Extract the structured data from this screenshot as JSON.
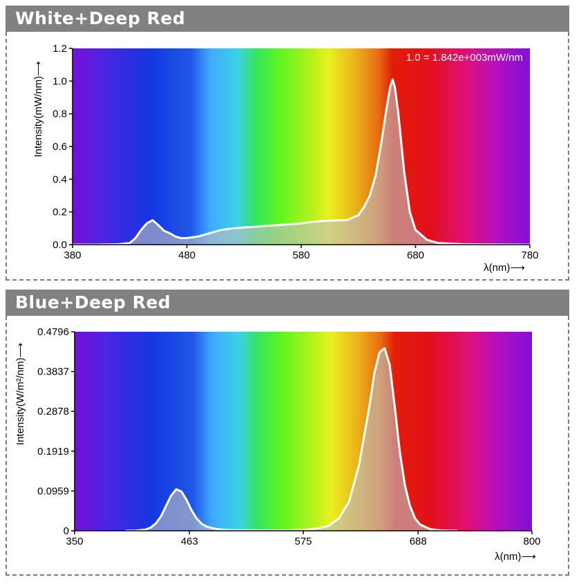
{
  "panels": [
    {
      "title": "White+Deep Red"
    },
    {
      "title": "Blue+Deep Red"
    }
  ],
  "chart_data": [
    {
      "type": "line",
      "title": "White+Deep Red",
      "xlabel": "λ(nm)⟶",
      "ylabel": "Intensity(mW/nm)⟶",
      "annotation": "1.0 = 1.842e+003mW/nm",
      "xlim": [
        380,
        780
      ],
      "ylim": [
        0,
        1.2
      ],
      "x_ticks": [
        380,
        480,
        580,
        680,
        780
      ],
      "x_tick_labels": [
        "380",
        "480",
        "580",
        "680",
        "780"
      ],
      "y_ticks": [
        0,
        0.2,
        0.4,
        0.6,
        0.8,
        1.0,
        1.2
      ],
      "y_tick_labels": [
        "0.0",
        "0.2",
        "0.4",
        "0.6",
        "0.8",
        "1.0",
        "1.2"
      ],
      "grid": false,
      "background": "visible spectrum gradient",
      "x": [
        380,
        400,
        420,
        430,
        435,
        440,
        445,
        450,
        455,
        460,
        465,
        470,
        475,
        480,
        490,
        500,
        510,
        520,
        530,
        540,
        550,
        560,
        570,
        580,
        590,
        600,
        610,
        620,
        630,
        635,
        640,
        645,
        650,
        655,
        658,
        660,
        662,
        665,
        670,
        675,
        680,
        690,
        700,
        720,
        740,
        780
      ],
      "values": [
        0,
        0,
        0.002,
        0.01,
        0.04,
        0.09,
        0.13,
        0.15,
        0.12,
        0.085,
        0.07,
        0.05,
        0.04,
        0.04,
        0.05,
        0.07,
        0.09,
        0.1,
        0.105,
        0.11,
        0.115,
        0.12,
        0.125,
        0.13,
        0.14,
        0.145,
        0.148,
        0.15,
        0.18,
        0.23,
        0.3,
        0.42,
        0.62,
        0.85,
        0.97,
        1.01,
        0.96,
        0.8,
        0.45,
        0.2,
        0.09,
        0.03,
        0.01,
        0.003,
        0.001,
        0
      ]
    },
    {
      "type": "line",
      "title": "Blue+Deep Red",
      "xlabel": "λ(nm)⟶",
      "ylabel": "Intensity(W/m²/nm)⟶",
      "xlim": [
        350,
        800
      ],
      "ylim": [
        0,
        0.4796
      ],
      "x_ticks": [
        350,
        463,
        575,
        688,
        800
      ],
      "x_tick_labels": [
        "350",
        "463",
        "575",
        "688",
        "800"
      ],
      "y_ticks": [
        0,
        0.0959,
        0.1919,
        0.2878,
        0.3837,
        0.4796
      ],
      "y_tick_labels": [
        "0",
        "0.0959",
        "0.1919",
        "0.2878",
        "0.3837",
        "0.4796"
      ],
      "grid": false,
      "background": "visible spectrum gradient",
      "x": [
        400,
        410,
        420,
        425,
        430,
        435,
        440,
        445,
        450,
        455,
        460,
        465,
        470,
        475,
        480,
        490,
        500,
        510,
        520,
        530,
        540,
        550,
        560,
        570,
        580,
        590,
        600,
        610,
        620,
        630,
        640,
        645,
        650,
        655,
        660,
        665,
        670,
        675,
        680,
        685,
        690,
        700,
        710,
        720,
        727
      ],
      "values": [
        0,
        0.0005,
        0.003,
        0.008,
        0.018,
        0.035,
        0.06,
        0.085,
        0.1,
        0.095,
        0.075,
        0.05,
        0.03,
        0.017,
        0.01,
        0.004,
        0.002,
        0.001,
        0.001,
        0.001,
        0.001,
        0.001,
        0.001,
        0.002,
        0.003,
        0.006,
        0.012,
        0.03,
        0.07,
        0.16,
        0.3,
        0.38,
        0.43,
        0.44,
        0.4,
        0.3,
        0.19,
        0.11,
        0.06,
        0.03,
        0.015,
        0.004,
        0.001,
        0.0003,
        0
      ]
    }
  ]
}
